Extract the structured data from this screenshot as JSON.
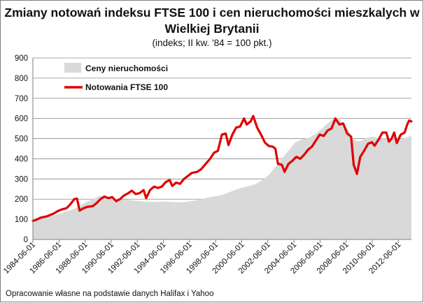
{
  "chart_data": {
    "type": "area",
    "title": "Zmiany notowań indeksu FTSE 100 i cen nieruchomości mieszkalych w",
    "title_line2": "Wielkiej Brytanii",
    "subtitle": "(indeks; II kw.  '84 = 100 pkt.)",
    "source": "Opracowanie własne na podstawie danych Halifax i Yahoo",
    "ylim": [
      0,
      900
    ],
    "yticks": [
      "0",
      "100",
      "200",
      "300",
      "400",
      "500",
      "600",
      "700",
      "800",
      "900"
    ],
    "xlim": [
      1984.42,
      2013.42
    ],
    "xticks": [
      {
        "label": "1984-06-01",
        "x": 1984.42
      },
      {
        "label": "1986-06-01",
        "x": 1986.42
      },
      {
        "label": "1988-06-01",
        "x": 1988.42
      },
      {
        "label": "1990-06-01",
        "x": 1990.42
      },
      {
        "label": "1992-06-01",
        "x": 1992.42
      },
      {
        "label": "1994-06-01",
        "x": 1994.42
      },
      {
        "label": "1996-06-01",
        "x": 1996.42
      },
      {
        "label": "1998-06-01",
        "x": 1998.42
      },
      {
        "label": "2000-06-01",
        "x": 2000.42
      },
      {
        "label": "2002-06-01",
        "x": 2002.42
      },
      {
        "label": "2004-06-01",
        "x": 2004.42
      },
      {
        "label": "2006-06-01",
        "x": 2006.42
      },
      {
        "label": "2008-06-01",
        "x": 2008.42
      },
      {
        "label": "2010-06-01",
        "x": 2010.42
      },
      {
        "label": "2012-06-01",
        "x": 2012.42
      }
    ],
    "grid": true,
    "legend_position": "top-left",
    "series": [
      {
        "name": "Ceny nieruchomości",
        "kind": "area",
        "color": "#d9d9d9",
        "points": [
          [
            1984.42,
            100
          ],
          [
            1985.0,
            105
          ],
          [
            1985.5,
            112
          ],
          [
            1986.0,
            118
          ],
          [
            1986.5,
            128
          ],
          [
            1987.0,
            138
          ],
          [
            1987.5,
            150
          ],
          [
            1988.0,
            165
          ],
          [
            1988.5,
            185
          ],
          [
            1989.0,
            200
          ],
          [
            1989.5,
            215
          ],
          [
            1990.0,
            213
          ],
          [
            1990.5,
            207
          ],
          [
            1991.0,
            200
          ],
          [
            1991.5,
            198
          ],
          [
            1992.0,
            195
          ],
          [
            1992.5,
            190
          ],
          [
            1993.0,
            188
          ],
          [
            1993.5,
            186
          ],
          [
            1994.0,
            187
          ],
          [
            1994.5,
            188
          ],
          [
            1995.0,
            186
          ],
          [
            1995.5,
            184
          ],
          [
            1996.0,
            185
          ],
          [
            1996.5,
            190
          ],
          [
            1997.0,
            195
          ],
          [
            1997.5,
            203
          ],
          [
            1998.0,
            210
          ],
          [
            1998.5,
            215
          ],
          [
            1999.0,
            222
          ],
          [
            1999.5,
            235
          ],
          [
            2000.0,
            248
          ],
          [
            2000.5,
            258
          ],
          [
            2001.0,
            266
          ],
          [
            2001.5,
            275
          ],
          [
            2002.0,
            295
          ],
          [
            2002.5,
            320
          ],
          [
            2003.0,
            360
          ],
          [
            2003.5,
            400
          ],
          [
            2004.0,
            440
          ],
          [
            2004.5,
            480
          ],
          [
            2005.0,
            495
          ],
          [
            2005.5,
            503
          ],
          [
            2006.0,
            520
          ],
          [
            2006.5,
            545
          ],
          [
            2007.0,
            575
          ],
          [
            2007.5,
            600
          ],
          [
            2007.8,
            605
          ],
          [
            2008.0,
            590
          ],
          [
            2008.5,
            550
          ],
          [
            2009.0,
            498
          ],
          [
            2009.3,
            485
          ],
          [
            2009.6,
            490
          ],
          [
            2010.0,
            505
          ],
          [
            2010.5,
            510
          ],
          [
            2011.0,
            500
          ],
          [
            2011.5,
            500
          ],
          [
            2012.0,
            500
          ],
          [
            2012.5,
            495
          ],
          [
            2013.0,
            505
          ],
          [
            2013.42,
            515
          ]
        ]
      },
      {
        "name": "Notowania FTSE 100",
        "kind": "line",
        "color": "#e00000",
        "points": [
          [
            1984.42,
            92
          ],
          [
            1984.7,
            98
          ],
          [
            1985.0,
            108
          ],
          [
            1985.5,
            115
          ],
          [
            1986.0,
            128
          ],
          [
            1986.3,
            140
          ],
          [
            1986.6,
            148
          ],
          [
            1987.0,
            155
          ],
          [
            1987.3,
            175
          ],
          [
            1987.6,
            200
          ],
          [
            1987.8,
            203
          ],
          [
            1988.0,
            143
          ],
          [
            1988.3,
            155
          ],
          [
            1988.6,
            162
          ],
          [
            1989.0,
            165
          ],
          [
            1989.3,
            180
          ],
          [
            1989.6,
            200
          ],
          [
            1989.9,
            213
          ],
          [
            1990.2,
            205
          ],
          [
            1990.5,
            210
          ],
          [
            1990.8,
            190
          ],
          [
            1991.1,
            200
          ],
          [
            1991.4,
            218
          ],
          [
            1991.7,
            228
          ],
          [
            1992.0,
            242
          ],
          [
            1992.3,
            225
          ],
          [
            1992.6,
            230
          ],
          [
            1992.9,
            245
          ],
          [
            1993.1,
            205
          ],
          [
            1993.4,
            245
          ],
          [
            1993.7,
            262
          ],
          [
            1994.0,
            255
          ],
          [
            1994.3,
            262
          ],
          [
            1994.6,
            285
          ],
          [
            1994.9,
            295
          ],
          [
            1995.1,
            265
          ],
          [
            1995.4,
            282
          ],
          [
            1995.7,
            276
          ],
          [
            1996.0,
            300
          ],
          [
            1996.3,
            315
          ],
          [
            1996.6,
            330
          ],
          [
            1997.0,
            335
          ],
          [
            1997.3,
            348
          ],
          [
            1997.6,
            370
          ],
          [
            1998.0,
            400
          ],
          [
            1998.3,
            430
          ],
          [
            1998.6,
            440
          ],
          [
            1998.9,
            520
          ],
          [
            1999.2,
            525
          ],
          [
            1999.4,
            468
          ],
          [
            1999.7,
            520
          ],
          [
            2000.0,
            555
          ],
          [
            2000.3,
            560
          ],
          [
            2000.6,
            600
          ],
          [
            2000.8,
            570
          ],
          [
            2001.1,
            585
          ],
          [
            2001.3,
            612
          ],
          [
            2001.6,
            555
          ],
          [
            2001.9,
            520
          ],
          [
            2002.2,
            480
          ],
          [
            2002.5,
            463
          ],
          [
            2002.8,
            460
          ],
          [
            2003.0,
            450
          ],
          [
            2003.2,
            375
          ],
          [
            2003.5,
            370
          ],
          [
            2003.7,
            335
          ],
          [
            2004.0,
            375
          ],
          [
            2004.3,
            390
          ],
          [
            2004.6,
            410
          ],
          [
            2004.9,
            400
          ],
          [
            2005.2,
            420
          ],
          [
            2005.5,
            445
          ],
          [
            2005.8,
            460
          ],
          [
            2006.1,
            490
          ],
          [
            2006.4,
            520
          ],
          [
            2006.7,
            513
          ],
          [
            2007.0,
            540
          ],
          [
            2007.3,
            550
          ],
          [
            2007.6,
            600
          ],
          [
            2007.9,
            570
          ],
          [
            2008.2,
            575
          ],
          [
            2008.5,
            525
          ],
          [
            2008.8,
            510
          ],
          [
            2009.0,
            370
          ],
          [
            2009.25,
            325
          ],
          [
            2009.5,
            410
          ],
          [
            2009.8,
            440
          ],
          [
            2010.1,
            475
          ],
          [
            2010.4,
            482
          ],
          [
            2010.6,
            465
          ],
          [
            2010.9,
            495
          ],
          [
            2011.2,
            530
          ],
          [
            2011.5,
            530
          ],
          [
            2011.7,
            485
          ],
          [
            2011.9,
            500
          ],
          [
            2012.1,
            530
          ],
          [
            2012.3,
            478
          ],
          [
            2012.6,
            520
          ],
          [
            2012.9,
            530
          ],
          [
            2013.1,
            570
          ],
          [
            2013.25,
            590
          ],
          [
            2013.42,
            585
          ]
        ]
      }
    ]
  }
}
